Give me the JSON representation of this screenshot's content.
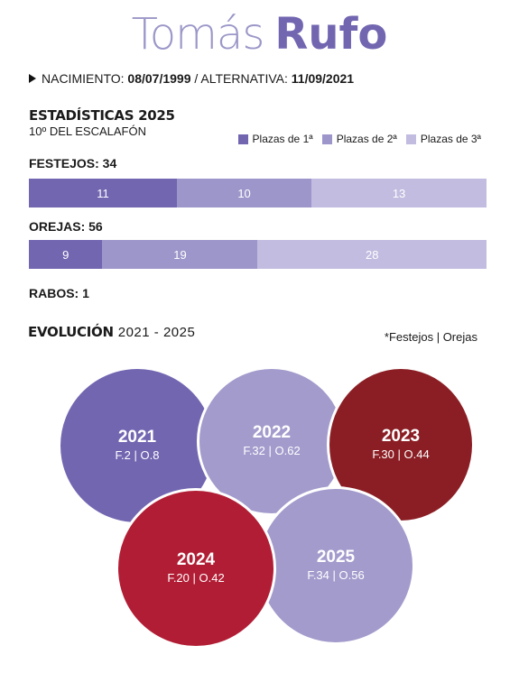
{
  "header": {
    "first_name": "Tomás",
    "last_name": "Rufo"
  },
  "info": {
    "birth_label": "NACIMIENTO:",
    "birth_date": "08/07/1999",
    "separator": "/",
    "alt_label": "ALTERNATIVA:",
    "alt_date": "11/09/2021"
  },
  "stats_section": {
    "title": "ESTADÍSTICAS 2025",
    "subtitle": "10º DEL ESCALAFÓN"
  },
  "colors": {
    "first": "#7266b1",
    "second": "#9d96ca",
    "third": "#c1bce0",
    "c2023": "#8b1e24",
    "c2024": "#b11d34"
  },
  "rabos": "RABOS: 1",
  "evolution": {
    "title": "EVOLUCIÓN",
    "range": "2021 - 2025",
    "note": "*Festejos | Orejas"
  },
  "chart_data": [
    {
      "type": "bar",
      "orientation": "horizontal-stacked",
      "label": "FESTEJOS: 34",
      "total": 34,
      "series": [
        {
          "name": "Plazas de 1ª",
          "value": 11
        },
        {
          "name": "Plazas de 2ª",
          "value": 10
        },
        {
          "name": "Plazas de 3ª",
          "value": 13
        }
      ],
      "legend_position": "top-right"
    },
    {
      "type": "bar",
      "orientation": "horizontal-stacked",
      "label": "OREJAS: 56",
      "total": 56,
      "series": [
        {
          "name": "Plazas de 1ª",
          "value": 9
        },
        {
          "name": "Plazas de 2ª",
          "value": 19
        },
        {
          "name": "Plazas de 3ª",
          "value": 28
        }
      ]
    },
    {
      "type": "table",
      "columns": [
        "year",
        "festejos",
        "orejas"
      ],
      "rows": [
        {
          "year": "2021",
          "stats": "F.2 | O.8",
          "festejos": 2,
          "orejas": 8,
          "color": "#7266b1"
        },
        {
          "year": "2022",
          "stats": "F.32 | O.62",
          "festejos": 32,
          "orejas": 62,
          "color": "#a29bcc"
        },
        {
          "year": "2023",
          "stats": "F.30 | O.44",
          "festejos": 30,
          "orejas": 44,
          "color": "#8b1e24"
        },
        {
          "year": "2024",
          "stats": "F.20 | O.42",
          "festejos": 20,
          "orejas": 42,
          "color": "#b11d34"
        },
        {
          "year": "2025",
          "stats": "F.34 | O.56",
          "festejos": 34,
          "orejas": 56,
          "color": "#a29bcc"
        }
      ]
    }
  ]
}
